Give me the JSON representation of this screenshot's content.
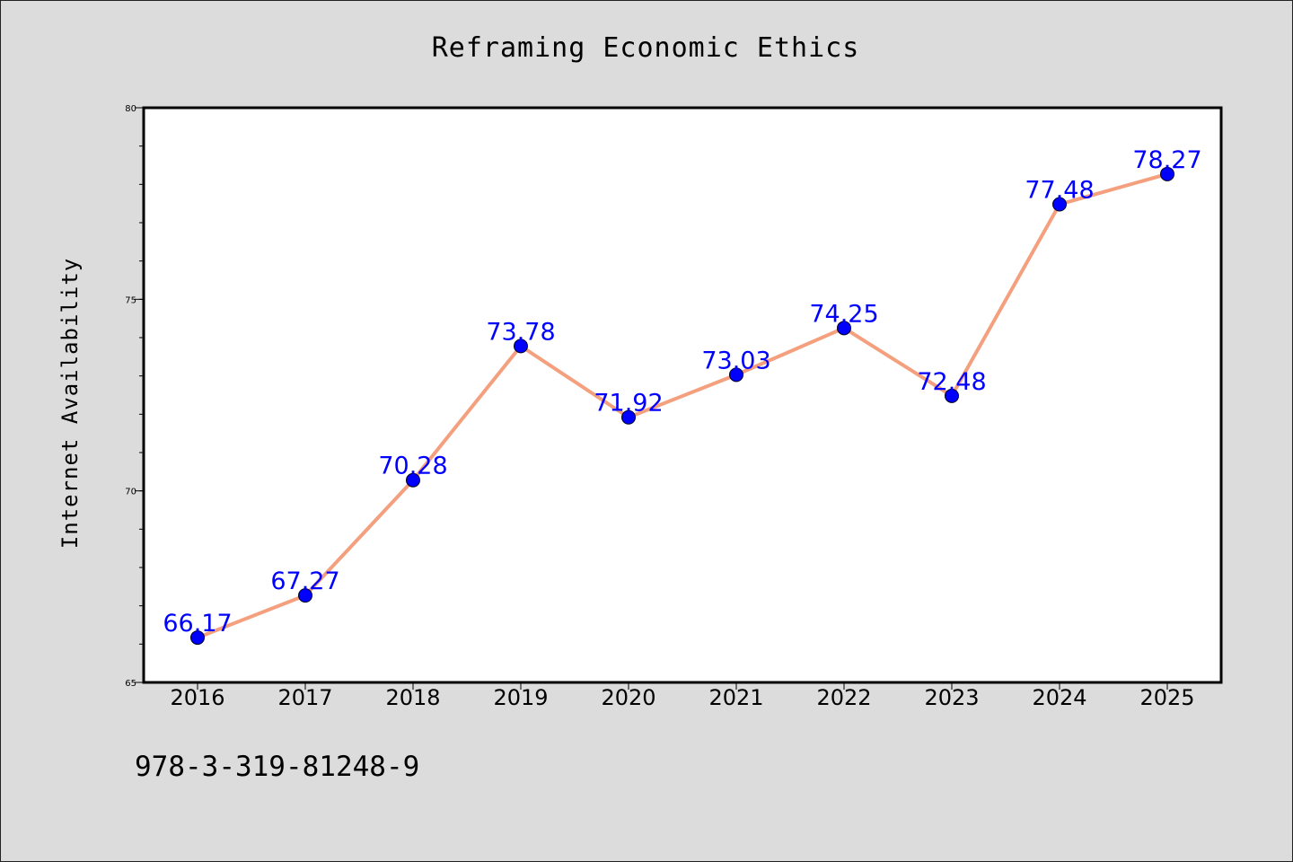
{
  "chart_data": {
    "type": "line",
    "title": "Reframing Economic Ethics",
    "xlabel": "",
    "ylabel": "Internet Availability",
    "categories": [
      "2016",
      "2017",
      "2018",
      "2019",
      "2020",
      "2021",
      "2022",
      "2023",
      "2024",
      "2025"
    ],
    "series": [
      {
        "values": [
          66.17,
          67.27,
          70.28,
          73.78,
          71.92,
          73.03,
          74.25,
          72.48,
          77.48,
          78.27
        ],
        "labels": [
          "66.17",
          "67.27",
          "70.28",
          "73.78",
          "71.92",
          "73.03",
          "74.25",
          "72.48",
          "77.48",
          "78.27"
        ]
      }
    ],
    "ylim": [
      65,
      80
    ],
    "yticks": [
      "65",
      "70",
      "75",
      "80"
    ],
    "grid": false,
    "legend": "none",
    "colors": {
      "line": "#f4a07e",
      "marker": "#0000ff",
      "data_label": "#0000ff",
      "background": "#dcdcdc",
      "plot_background": "#ffffff"
    }
  },
  "footer": {
    "isbn": "978-3-319-81248-9"
  }
}
